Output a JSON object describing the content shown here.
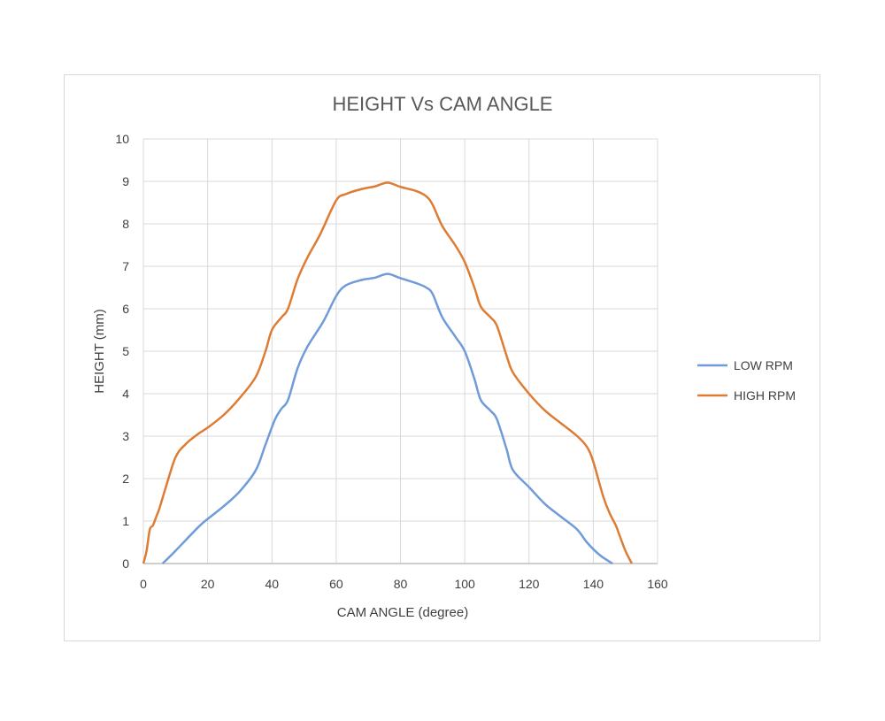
{
  "chart_data": {
    "type": "line",
    "title": "HEIGHT Vs CAM ANGLE",
    "xlabel": "CAM ANGLE (degree)",
    "ylabel": "HEIGHT (mm)",
    "xlim": [
      0,
      160
    ],
    "ylim": [
      0,
      10
    ],
    "xticks": [
      0,
      20,
      40,
      60,
      80,
      100,
      120,
      140,
      160
    ],
    "yticks": [
      0,
      1,
      2,
      3,
      4,
      5,
      6,
      7,
      8,
      9,
      10
    ],
    "grid": true,
    "legend_position": "right",
    "series": [
      {
        "name": "LOW RPM",
        "color": "#6f9bd8",
        "points": [
          [
            6,
            0
          ],
          [
            10,
            0.3
          ],
          [
            17,
            0.85
          ],
          [
            20,
            1.05
          ],
          [
            25,
            1.35
          ],
          [
            30,
            1.7
          ],
          [
            35,
            2.2
          ],
          [
            38,
            2.8
          ],
          [
            41,
            3.4
          ],
          [
            43,
            3.65
          ],
          [
            45,
            3.85
          ],
          [
            48,
            4.6
          ],
          [
            51,
            5.1
          ],
          [
            56,
            5.7
          ],
          [
            60,
            6.3
          ],
          [
            63,
            6.55
          ],
          [
            68,
            6.68
          ],
          [
            72,
            6.73
          ],
          [
            76,
            6.82
          ],
          [
            80,
            6.72
          ],
          [
            85,
            6.6
          ],
          [
            88,
            6.5
          ],
          [
            90,
            6.35
          ],
          [
            93,
            5.8
          ],
          [
            97,
            5.35
          ],
          [
            100,
            5.0
          ],
          [
            103,
            4.35
          ],
          [
            105,
            3.85
          ],
          [
            108,
            3.6
          ],
          [
            110,
            3.4
          ],
          [
            113,
            2.7
          ],
          [
            115,
            2.2
          ],
          [
            120,
            1.8
          ],
          [
            125,
            1.4
          ],
          [
            130,
            1.1
          ],
          [
            135,
            0.8
          ],
          [
            138,
            0.5
          ],
          [
            142,
            0.2
          ],
          [
            146,
            0
          ]
        ]
      },
      {
        "name": "HIGH RPM",
        "color": "#dd7d35",
        "points": [
          [
            0,
            0
          ],
          [
            1,
            0.3
          ],
          [
            2,
            0.8
          ],
          [
            3,
            0.9
          ],
          [
            4,
            1.1
          ],
          [
            5,
            1.3
          ],
          [
            7,
            1.8
          ],
          [
            10,
            2.5
          ],
          [
            13,
            2.8
          ],
          [
            17,
            3.05
          ],
          [
            20,
            3.2
          ],
          [
            25,
            3.5
          ],
          [
            30,
            3.9
          ],
          [
            35,
            4.4
          ],
          [
            38,
            5.0
          ],
          [
            40,
            5.5
          ],
          [
            43,
            5.8
          ],
          [
            45,
            6.0
          ],
          [
            48,
            6.7
          ],
          [
            51,
            7.2
          ],
          [
            55,
            7.75
          ],
          [
            60,
            8.55
          ],
          [
            63,
            8.7
          ],
          [
            68,
            8.82
          ],
          [
            72,
            8.88
          ],
          [
            76,
            8.97
          ],
          [
            80,
            8.87
          ],
          [
            85,
            8.77
          ],
          [
            88,
            8.65
          ],
          [
            90,
            8.45
          ],
          [
            93,
            7.95
          ],
          [
            97,
            7.5
          ],
          [
            100,
            7.1
          ],
          [
            103,
            6.5
          ],
          [
            105,
            6.05
          ],
          [
            108,
            5.8
          ],
          [
            110,
            5.6
          ],
          [
            113,
            4.9
          ],
          [
            115,
            4.5
          ],
          [
            120,
            4.0
          ],
          [
            125,
            3.6
          ],
          [
            130,
            3.3
          ],
          [
            135,
            3.0
          ],
          [
            138,
            2.75
          ],
          [
            140,
            2.4
          ],
          [
            143,
            1.6
          ],
          [
            145,
            1.2
          ],
          [
            147,
            0.9
          ],
          [
            148,
            0.7
          ],
          [
            150,
            0.3
          ],
          [
            152,
            0
          ]
        ]
      }
    ]
  }
}
